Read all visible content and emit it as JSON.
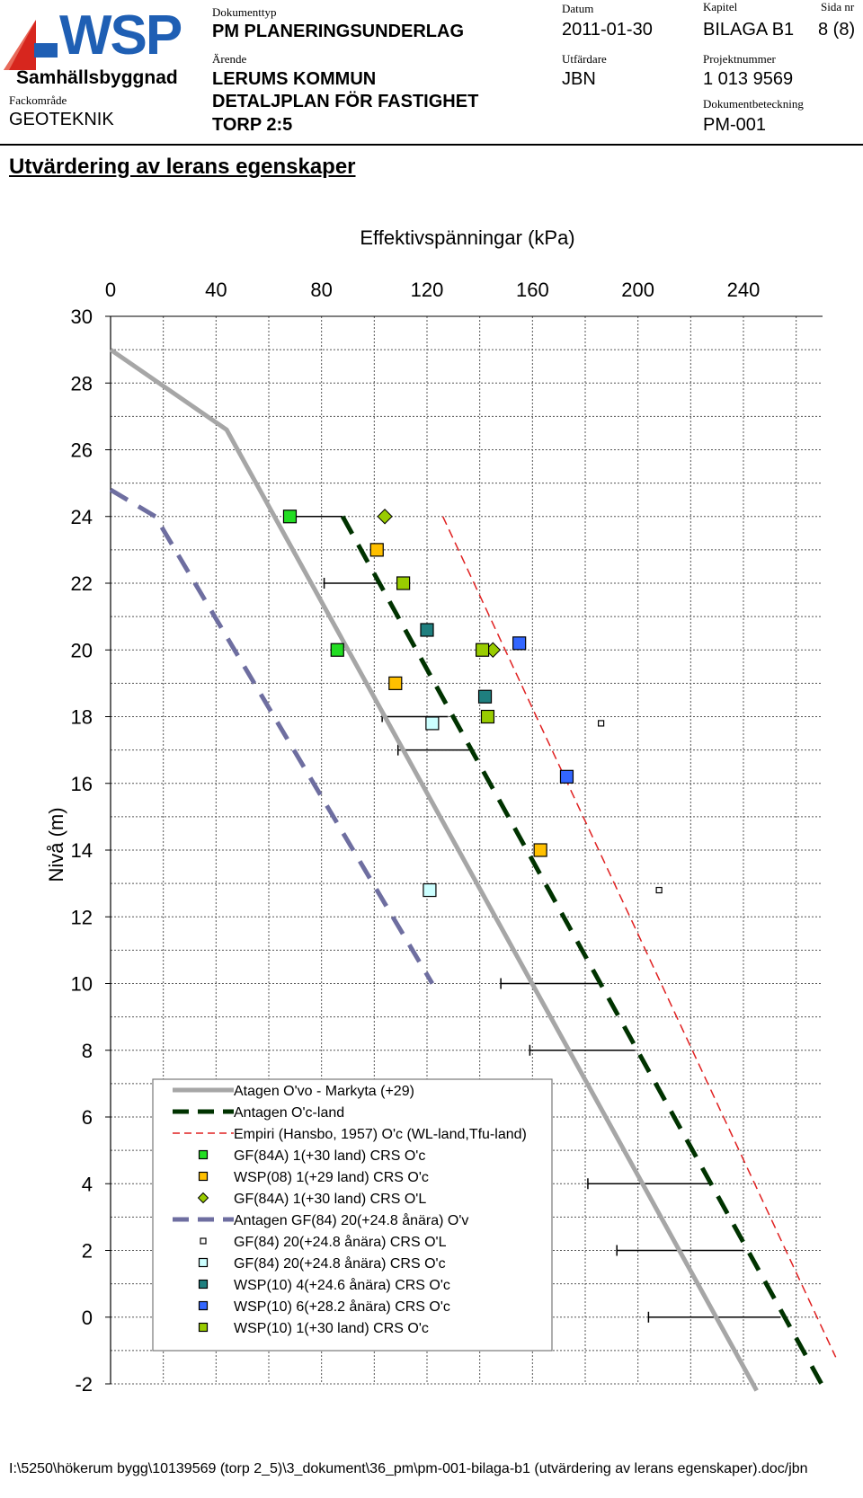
{
  "header": {
    "logo_text": "WSP",
    "company": "Samhällsbyggnad",
    "field_label": "Fackområde",
    "field_value": "GEOTEKNIK",
    "doc_type_label": "Dokumenttyp",
    "doc_type": "PM PLANERINGSUNDERLAG",
    "case_label": "Ärende",
    "case_line1": "LERUMS KOMMUN",
    "case_line2": "DETALJPLAN FÖR FASTIGHET",
    "case_line3": "TORP 2:5",
    "date_label": "Datum",
    "date": "2011-01-30",
    "issuer_label": "Utfärdare",
    "issuer": "JBN",
    "chapter_label": "Kapitel",
    "chapter": "BILAGA B1",
    "page_label": "Sida nr",
    "page": "8 (8)",
    "project_label": "Projektnummer",
    "project": "1 013 9569",
    "doc_id_label": "Dokumentbeteckning",
    "doc_id": "PM-001",
    "colors": {
      "logo_blue": "#1f5fb4",
      "logo_red": "#d7261e"
    }
  },
  "page_title": "Utvärdering av lerans egenskaper",
  "footer": "I:\\5250\\hökerum bygg\\10139569 (torp 2_5)\\3_dokument\\36_pm\\pm-001-bilaga-b1 (utvärdering av lerans egenskaper).doc/jbn",
  "chart_data": {
    "type": "scatter",
    "title": "Effektivspänningar (kPa)",
    "xlabel": "Effektivspänningar (kPa)",
    "ylabel": "Nivå (m)",
    "x_ticks": [
      0,
      40,
      80,
      120,
      160,
      200,
      240
    ],
    "y_ticks": [
      30,
      28,
      26,
      24,
      22,
      20,
      18,
      16,
      14,
      12,
      10,
      8,
      6,
      4,
      2,
      0,
      -2
    ],
    "xlim": [
      0,
      270
    ],
    "ylim": [
      -2,
      30
    ],
    "x_axis_position": "top",
    "grid": true,
    "legend_position": "bottom-left",
    "series": [
      {
        "name": "Atagen O'vo - Markyta (+29)",
        "kind": "line",
        "style": "solid",
        "color": "#a6a6a6",
        "points": [
          [
            0,
            29
          ],
          [
            44,
            26.6
          ],
          [
            245,
            -2.2
          ]
        ]
      },
      {
        "name": "Antagen O'c-land",
        "kind": "line",
        "style": "dash",
        "color": "#003300",
        "points": [
          [
            88,
            24
          ],
          [
            271,
            -2.2
          ]
        ]
      },
      {
        "name": "Empiri (Hansbo, 1957) O'c (WL-land,Tfu-land)",
        "kind": "line",
        "style": "thin-dash",
        "color": "#e02020",
        "points": [
          [
            126,
            24
          ],
          [
            275,
            -1.2
          ]
        ]
      },
      {
        "name": "GF(84A) 1(+30 land) CRS O'c",
        "kind": "marker",
        "shape": "square",
        "color": "#22dd22",
        "points": [
          [
            68,
            24
          ],
          [
            86,
            20
          ]
        ]
      },
      {
        "name": "WSP(08) 1(+29 land) CRS O'c",
        "kind": "marker",
        "shape": "square",
        "color": "#ffc000",
        "points": [
          [
            101,
            23
          ],
          [
            108,
            19
          ],
          [
            163,
            14
          ]
        ]
      },
      {
        "name": "GF(84A) 1(+30 land) CRS O'L",
        "kind": "marker",
        "shape": "diamond",
        "color": "#99cc00",
        "points": [
          [
            104,
            24
          ],
          [
            145,
            20
          ]
        ]
      },
      {
        "name": "Antagen GF(84) 20(+24.8 ånära) O'v",
        "kind": "line",
        "style": "dash",
        "color": "#6e6ea0",
        "points": [
          [
            0,
            24.8
          ],
          [
            17,
            24
          ],
          [
            122,
            10
          ]
        ]
      },
      {
        "name": "GF(84) 20(+24.8 ånära) CRS O'L",
        "kind": "marker",
        "shape": "small-square",
        "color": "#ffffff",
        "points": [
          [
            186,
            17.8
          ],
          [
            208,
            12.8
          ]
        ]
      },
      {
        "name": "GF(84) 20(+24.8 ånära) CRS O'c",
        "kind": "marker",
        "shape": "square",
        "color": "#ccffff",
        "points": [
          [
            122,
            17.8
          ],
          [
            121,
            12.8
          ]
        ]
      },
      {
        "name": "WSP(10) 4(+24.6 ånära) CRS O'c",
        "kind": "marker",
        "shape": "square",
        "color": "#1f7f7f",
        "points": [
          [
            120,
            20.6
          ],
          [
            142,
            18.6
          ]
        ]
      },
      {
        "name": "WSP(10) 6(+28.2 ånära) CRS O'c",
        "kind": "marker",
        "shape": "square",
        "color": "#3366ff",
        "points": [
          [
            155,
            20.2
          ],
          [
            173,
            16.2
          ]
        ]
      },
      {
        "name": "WSP(10) 1(+30 land) CRS O'c",
        "kind": "marker",
        "shape": "square",
        "color": "#99cc00",
        "points": [
          [
            111,
            22
          ],
          [
            141,
            20
          ],
          [
            143,
            18
          ]
        ]
      }
    ],
    "range_bars": [
      {
        "y": 24,
        "x1": 68,
        "x2": 88
      },
      {
        "y": 22,
        "x1": 81,
        "x2": 102
      },
      {
        "y": 18,
        "x1": 103,
        "x2": 128
      },
      {
        "y": 17,
        "x1": 109,
        "x2": 136
      },
      {
        "y": 10,
        "x1": 148,
        "x2": 185
      },
      {
        "y": 8,
        "x1": 159,
        "x2": 199
      },
      {
        "y": 4,
        "x1": 181,
        "x2": 227
      },
      {
        "y": 2,
        "x1": 192,
        "x2": 240
      },
      {
        "y": 0,
        "x1": 204,
        "x2": 254
      }
    ]
  }
}
